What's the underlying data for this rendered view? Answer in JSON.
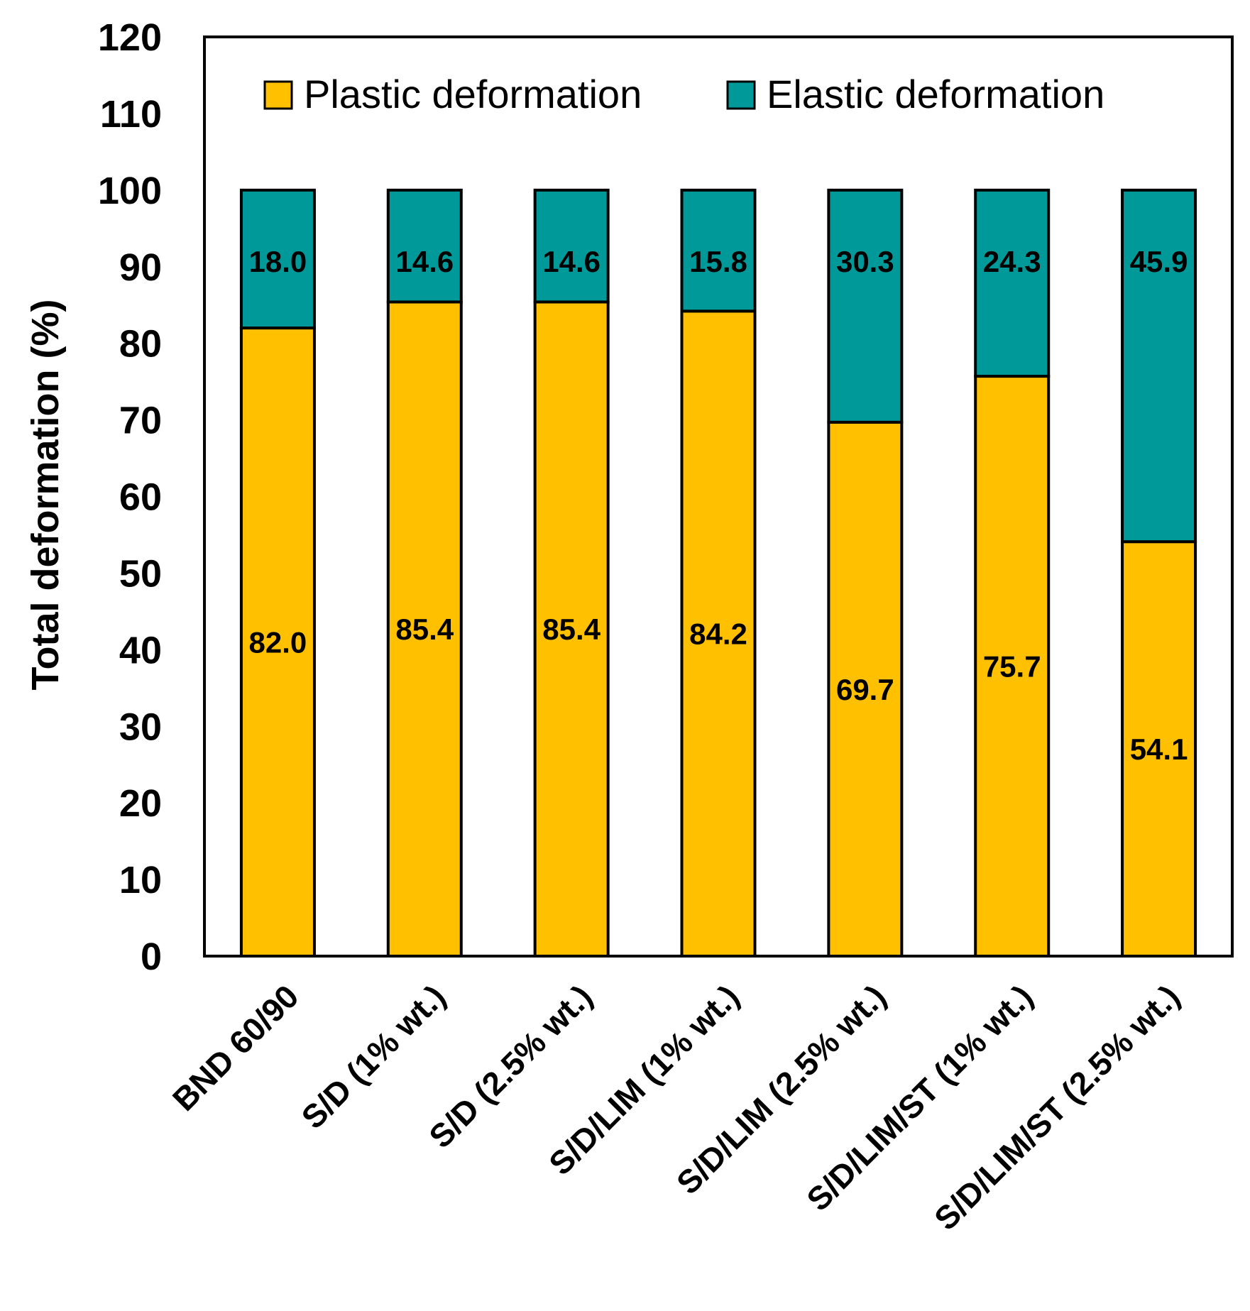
{
  "chart_data": {
    "type": "bar",
    "stacked": true,
    "title": "",
    "xlabel": "",
    "ylabel": "Total deformation (%)",
    "ylim": [
      0,
      120
    ],
    "yticks": [
      0,
      10,
      20,
      30,
      40,
      50,
      60,
      70,
      80,
      90,
      100,
      110,
      120
    ],
    "grid": false,
    "legend_position": "top",
    "categories": [
      "BND 60/90",
      "S/D (1% wt.)",
      "S/D (2.5% wt.)",
      "S/D/LIM (1% wt.)",
      "S/D/LIM (2.5% wt.)",
      "S/D/LIM/ST (1% wt.)",
      "S/D/LIM/ST (2.5% wt.)"
    ],
    "series": [
      {
        "name": "Plastic deformation",
        "color": "#FFC000",
        "values": [
          82.0,
          85.4,
          85.4,
          84.2,
          69.7,
          75.7,
          54.1
        ],
        "labels": [
          "82.0",
          "85.4",
          "85.4",
          "84.2",
          "69.7",
          "75.7",
          "54.1"
        ]
      },
      {
        "name": "Elastic deformation",
        "color": "#009999",
        "values": [
          18.0,
          14.6,
          14.6,
          15.8,
          30.3,
          24.3,
          45.9
        ],
        "labels": [
          "18.0",
          "14.6",
          "14.6",
          "15.8",
          "30.3",
          "24.3",
          "45.9"
        ]
      }
    ]
  }
}
